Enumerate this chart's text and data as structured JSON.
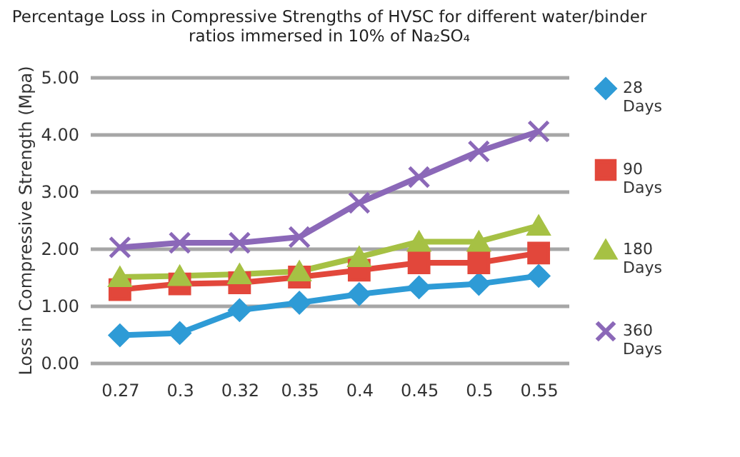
{
  "chart_data": {
    "type": "line",
    "title": "Percentage Loss in Compressive Strengths of HVSC for different water/binder ratios immersed in 10% of Na₂SO₄",
    "ylabel": "Loss in Compressive Strength (Mpa)",
    "categories": [
      "0.27",
      "0.3",
      "0.32",
      "0.35",
      "0.4",
      "0.45",
      "0.5",
      "0.55"
    ],
    "series": [
      {
        "name": "28 Days",
        "color": "#2e9bd6",
        "marker": "diamond",
        "values": [
          0.48,
          0.52,
          0.92,
          1.05,
          1.2,
          1.32,
          1.38,
          1.52
        ]
      },
      {
        "name": "90 Days",
        "color": "#e2473b",
        "marker": "square",
        "values": [
          1.28,
          1.38,
          1.4,
          1.5,
          1.62,
          1.75,
          1.75,
          1.92
        ]
      },
      {
        "name": "180 Days",
        "color": "#a6c144",
        "marker": "triangle",
        "values": [
          1.5,
          1.52,
          1.55,
          1.6,
          1.85,
          2.12,
          2.12,
          2.4
        ]
      },
      {
        "name": "360 Days",
        "color": "#8b68b8",
        "marker": "cross",
        "values": [
          2.02,
          2.1,
          2.1,
          2.2,
          2.8,
          3.25,
          3.7,
          4.05
        ]
      }
    ],
    "ylim": [
      0,
      5
    ],
    "yticks": [
      {
        "value": 0,
        "label": "0.00"
      },
      {
        "value": 1,
        "label": "1.00"
      },
      {
        "value": 2,
        "label": "2.00"
      },
      {
        "value": 3,
        "label": "3.00"
      },
      {
        "value": 4,
        "label": "4.00"
      },
      {
        "value": 5,
        "label": "5.00"
      }
    ],
    "grid": "y",
    "legend": "right"
  }
}
